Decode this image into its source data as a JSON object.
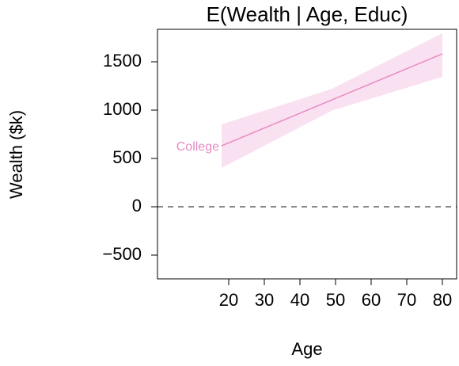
{
  "chart_data": {
    "type": "line",
    "title": "E(Wealth | Age, Educ)",
    "xlabel": "Age",
    "ylabel": "Wealth ($k)",
    "x": [
      18,
      49,
      80
    ],
    "series": [
      {
        "name": "College",
        "color": "#e78ac3",
        "band_color": "#fae1f1",
        "values": [
          631,
          1106,
          1582
        ],
        "lower": [
          402,
          995,
          1344
        ],
        "upper": [
          852,
          1220,
          1795
        ]
      }
    ],
    "reference_line": 0,
    "xlim": [
      0,
      84
    ],
    "xticks": [
      20,
      30,
      40,
      50,
      60,
      70,
      80
    ],
    "ylim": [
      -746,
      1836
    ],
    "yticks": [
      {
        "value": -500,
        "label": "−500"
      },
      0,
      500,
      1000,
      1500
    ]
  }
}
